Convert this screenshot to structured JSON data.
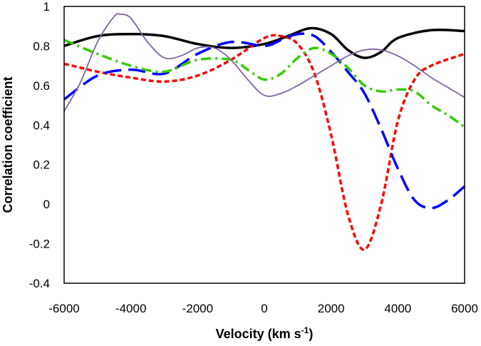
{
  "chart_data": {
    "type": "line",
    "title": "",
    "xlabel": "Velocity  (km s",
    "xlabel_sup": "-1",
    "xlabel_end": ")",
    "ylabel": "Correlation coefficient",
    "xlim": [
      -6000,
      6000
    ],
    "ylim": [
      -0.4,
      1.0
    ],
    "x_ticks": [
      -6000,
      -4000,
      -2000,
      0,
      2000,
      4000,
      6000
    ],
    "x_tick_labels": [
      "-6000",
      "-4000",
      "-2000",
      "0",
      "2000",
      "4000",
      "6000"
    ],
    "y_ticks": [
      -0.4,
      -0.2,
      0,
      0.2,
      0.4,
      0.6,
      0.8,
      1.0
    ],
    "y_tick_labels": [
      "-0.4",
      "-0.2",
      "0",
      "0.2",
      "0.4",
      "0.6",
      "0.8",
      "1"
    ],
    "grid": false,
    "legend": "none",
    "series": [
      {
        "name": "black-solid",
        "color": "#000000",
        "style": "solid",
        "x": [
          -6000,
          -5000,
          -4000,
          -3000,
          -2000,
          -1000,
          0,
          700,
          1400,
          2000,
          2500,
          3000,
          3500,
          4000,
          5000,
          6000
        ],
        "y": [
          0.8,
          0.85,
          0.86,
          0.85,
          0.81,
          0.79,
          0.81,
          0.85,
          0.89,
          0.86,
          0.78,
          0.74,
          0.77,
          0.84,
          0.88,
          0.875
        ]
      },
      {
        "name": "red-short-dash",
        "color": "#ff0000",
        "style": "short-dash",
        "x": [
          -6000,
          -5000,
          -4000,
          -3000,
          -2000,
          -1000,
          0,
          500,
          1000,
          1500,
          2000,
          2500,
          3000,
          3500,
          4000,
          4500,
          5000,
          6000
        ],
        "y": [
          0.71,
          0.67,
          0.64,
          0.62,
          0.65,
          0.73,
          0.84,
          0.85,
          0.81,
          0.66,
          0.35,
          -0.05,
          -0.23,
          0.0,
          0.42,
          0.63,
          0.7,
          0.76
        ]
      },
      {
        "name": "blue-long-dash",
        "color": "#0000ff",
        "style": "long-dash",
        "x": [
          -6000,
          -5000,
          -4000,
          -3000,
          -2000,
          -1000,
          0,
          500,
          1000,
          1500,
          2000,
          2500,
          3000,
          3500,
          4000,
          4500,
          5000,
          5500,
          6000
        ],
        "y": [
          0.53,
          0.65,
          0.68,
          0.66,
          0.76,
          0.82,
          0.8,
          0.83,
          0.86,
          0.85,
          0.77,
          0.67,
          0.56,
          0.38,
          0.18,
          0.02,
          -0.02,
          0.02,
          0.09
        ]
      },
      {
        "name": "green-dash-dot",
        "color": "#33cc00",
        "style": "dash-dot",
        "x": [
          -6000,
          -5000,
          -4000,
          -3000,
          -2000,
          -1000,
          -500,
          0,
          500,
          1000,
          1500,
          2000,
          2500,
          3000,
          3500,
          4000,
          4500,
          5000,
          5500,
          6000
        ],
        "y": [
          0.83,
          0.76,
          0.7,
          0.67,
          0.73,
          0.73,
          0.68,
          0.63,
          0.66,
          0.74,
          0.79,
          0.76,
          0.69,
          0.6,
          0.57,
          0.58,
          0.57,
          0.5,
          0.45,
          0.39
        ]
      },
      {
        "name": "purple-thin",
        "color": "#8064a2",
        "style": "solid-thin",
        "x": [
          -6000,
          -5500,
          -5000,
          -4500,
          -4300,
          -4000,
          -3500,
          -3000,
          -2500,
          -2000,
          -1500,
          -1000,
          -500,
          0,
          500,
          1000,
          1500,
          2000,
          2500,
          3000,
          3500,
          4000,
          4500,
          5000,
          5500,
          6000
        ],
        "y": [
          0.47,
          0.62,
          0.82,
          0.95,
          0.96,
          0.94,
          0.82,
          0.74,
          0.75,
          0.79,
          0.79,
          0.73,
          0.63,
          0.55,
          0.56,
          0.6,
          0.65,
          0.7,
          0.75,
          0.78,
          0.78,
          0.75,
          0.7,
          0.64,
          0.59,
          0.54
        ]
      }
    ]
  }
}
